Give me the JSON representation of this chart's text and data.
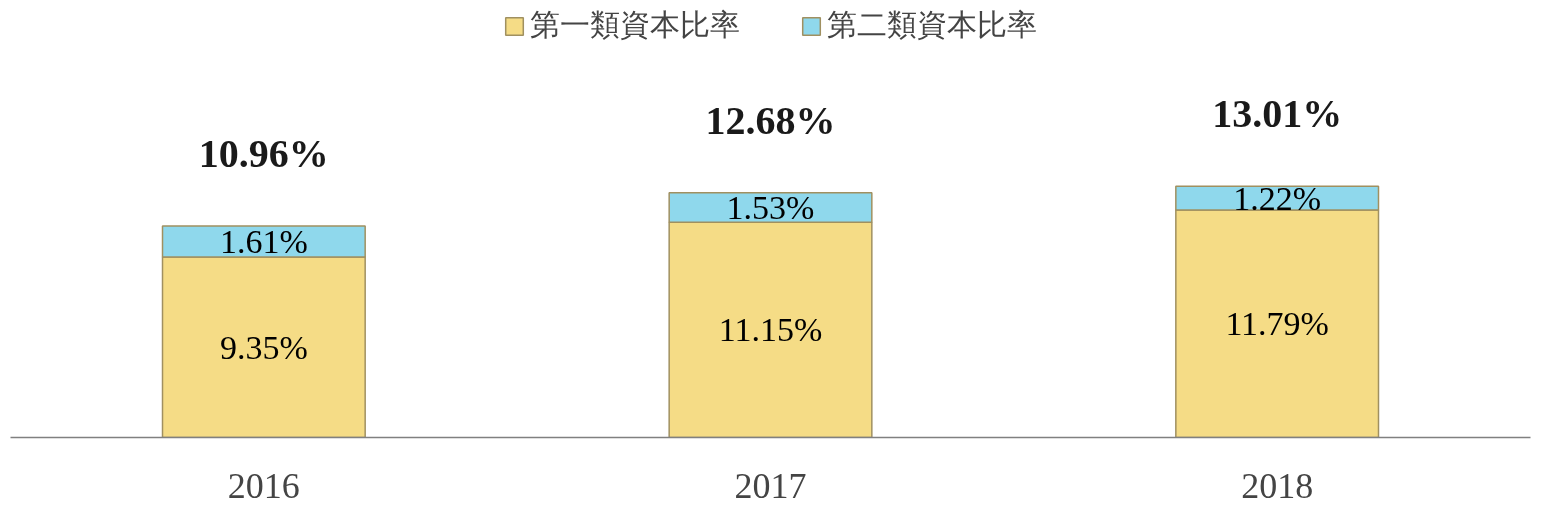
{
  "chart_data": {
    "type": "bar",
    "stacked": true,
    "categories": [
      "2016",
      "2017",
      "2018"
    ],
    "series": [
      {
        "name": "第一類資本比率",
        "color": "#f5dc86",
        "values": [
          9.35,
          11.15,
          11.79
        ],
        "value_labels": [
          "9.35%",
          "11.15%",
          "11.79%"
        ]
      },
      {
        "name": "第二類資本比率",
        "color": "#8fd8ec",
        "values": [
          1.61,
          1.53,
          1.22
        ],
        "value_labels": [
          "1.61%",
          "1.53%",
          "1.22%"
        ]
      }
    ],
    "totals": [
      "10.96%",
      "12.68%",
      "13.01%"
    ],
    "legend": "top",
    "grid": false
  }
}
